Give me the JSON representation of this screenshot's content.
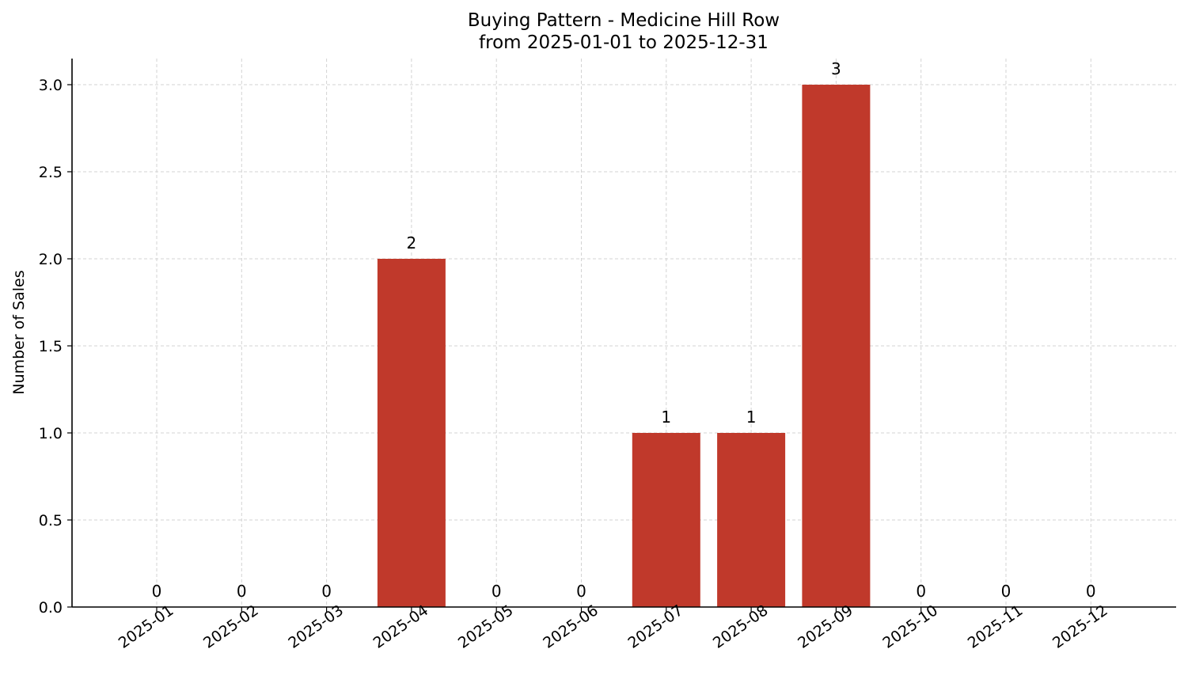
{
  "chart_data": {
    "type": "bar",
    "title": "Buying Pattern - Medicine Hill Row",
    "subtitle": "from 2025-01-01 to 2025-12-31",
    "xlabel": "",
    "ylabel": "Number of Sales",
    "categories": [
      "2025-01",
      "2025-02",
      "2025-03",
      "2025-04",
      "2025-05",
      "2025-06",
      "2025-07",
      "2025-08",
      "2025-09",
      "2025-10",
      "2025-11",
      "2025-12"
    ],
    "values": [
      0,
      0,
      0,
      2,
      0,
      0,
      1,
      1,
      3,
      0,
      0,
      0
    ],
    "data_labels": [
      "0",
      "0",
      "0",
      "2",
      "0",
      "0",
      "1",
      "1",
      "3",
      "0",
      "0",
      "0"
    ],
    "ylim": [
      0,
      3.15
    ],
    "yticks": [
      "0.0",
      "0.5",
      "1.0",
      "1.5",
      "2.0",
      "2.5",
      "3.0"
    ],
    "ytick_values": [
      0,
      0.5,
      1,
      1.5,
      2,
      2.5,
      3
    ],
    "grid": true,
    "legend": "none",
    "bar_color": "#c0392b"
  }
}
